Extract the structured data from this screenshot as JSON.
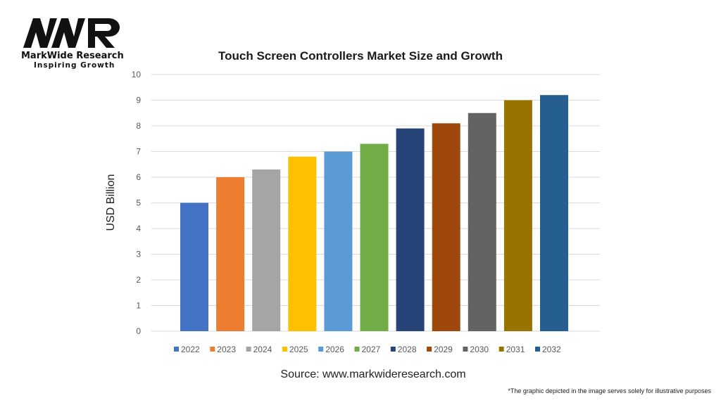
{
  "branding": {
    "logo_letters": "MWR",
    "name": "MarkWide Research",
    "tagline": "Inspiring Growth"
  },
  "footer": {
    "source": "Source: www.markwideresearch.com",
    "disclaimer": "*The  graphic depicted in the  image serves solely for illustrative purposes"
  },
  "chart_data": {
    "type": "bar",
    "title": "Touch Screen Controllers Market Size and Growth",
    "xlabel": "",
    "ylabel": "USD Billion",
    "ylim": [
      0,
      10
    ],
    "yticks": [
      0,
      1,
      2,
      3,
      4,
      5,
      6,
      7,
      8,
      9,
      10
    ],
    "grid": true,
    "legend_position": "bottom",
    "categories": [
      "2022",
      "2023",
      "2024",
      "2025",
      "2026",
      "2027",
      "2028",
      "2029",
      "2030",
      "2031",
      "2032"
    ],
    "values": [
      5.0,
      6.0,
      6.3,
      6.8,
      7.0,
      7.3,
      7.9,
      8.1,
      8.5,
      9.0,
      9.2
    ],
    "colors": [
      "#4472C4",
      "#ED7D31",
      "#A5A5A5",
      "#FFC000",
      "#5B9BD5",
      "#70AD47",
      "#264478",
      "#9E480E",
      "#636363",
      "#997300",
      "#255E91"
    ]
  }
}
